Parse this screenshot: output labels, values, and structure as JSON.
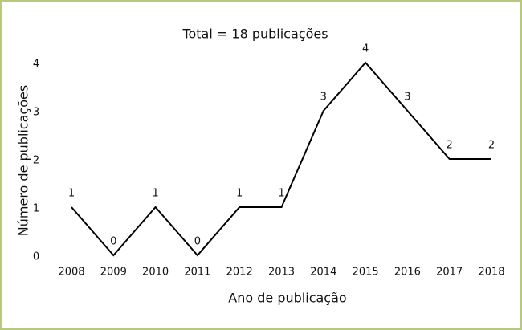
{
  "chart_data": {
    "type": "line",
    "title": "Total = 18 publicações",
    "x_label": "Ano de publicação",
    "y_label": "Número de publicações",
    "x": [
      2008,
      2009,
      2010,
      2011,
      2012,
      2013,
      2014,
      2015,
      2016,
      2017,
      2018
    ],
    "values": [
      1,
      0,
      1,
      0,
      1,
      1,
      3,
      4,
      3,
      2,
      2
    ],
    "color": "#000000",
    "xlim": [
      2008,
      2018
    ],
    "xticks": [
      2008,
      2009,
      2010,
      2011,
      2012,
      2013,
      2014,
      2015,
      2016,
      2017,
      2018
    ],
    "ylim": [
      0,
      4
    ],
    "yticks": [
      0,
      1,
      2,
      3,
      4
    ],
    "grid": false
  }
}
